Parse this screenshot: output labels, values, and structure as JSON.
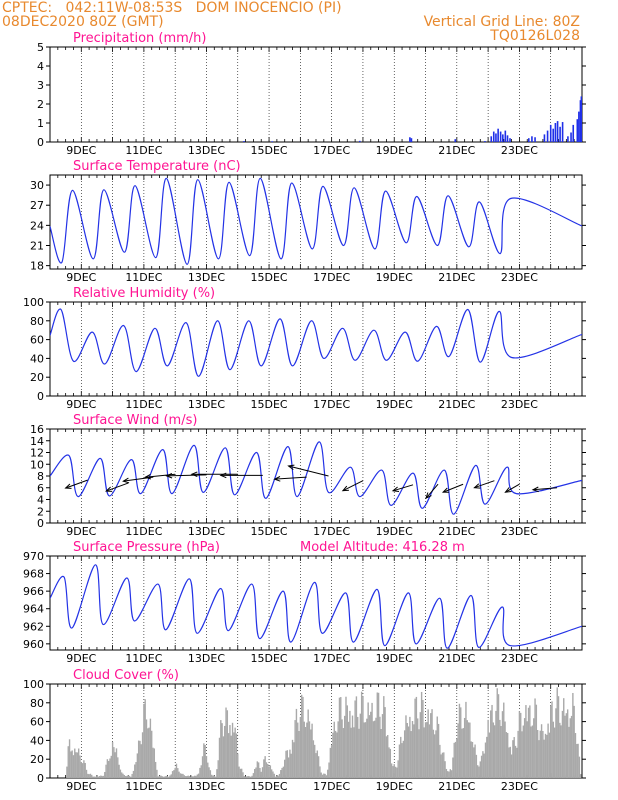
{
  "colors": {
    "header": "#e8892e",
    "title": "#ff1493",
    "line": "#2433e6",
    "bar_precip": "#1f2fe8",
    "bar_cloud": "#a9a9a9",
    "arrow": "#000000",
    "axis": "#000000"
  },
  "header": {
    "line1": "CPTEC:   042:11W-08:53S   DOM INOCENCIO (PI)",
    "line2_left": "08DEC2020 80Z (GMT)",
    "line2_right": "Vertical Grid Line: 80Z",
    "line3_right": "TQ0126L028"
  },
  "chart_data": [
    {
      "type": "bar",
      "title": "Precipitation (mm/h)",
      "x_ticks": [
        "9DEC",
        "11DEC",
        "13DEC",
        "15DEC",
        "17DEC",
        "19DEC",
        "21DEC",
        "23DEC"
      ],
      "ylim": [
        0,
        5
      ],
      "yticks": [
        0,
        1,
        2,
        3,
        4,
        5
      ],
      "values": [
        {
          "t": 14.2,
          "v": 0.05
        },
        {
          "t": 15.1,
          "v": 0.04
        },
        {
          "t": 17.9,
          "v": 0.06
        },
        {
          "t": 19.5,
          "v": 0.25
        },
        {
          "t": 19.55,
          "v": 0.2
        },
        {
          "t": 20.95,
          "v": 0.15
        },
        {
          "t": 21.9,
          "v": 0.05
        },
        {
          "t": 22.1,
          "v": 0.3
        },
        {
          "t": 22.18,
          "v": 0.55
        },
        {
          "t": 22.25,
          "v": 0.45
        },
        {
          "t": 22.32,
          "v": 0.7
        },
        {
          "t": 22.4,
          "v": 0.55
        },
        {
          "t": 22.47,
          "v": 0.4
        },
        {
          "t": 22.55,
          "v": 0.6
        },
        {
          "t": 22.62,
          "v": 0.35
        },
        {
          "t": 22.7,
          "v": 0.2
        },
        {
          "t": 23.3,
          "v": 0.2
        },
        {
          "t": 23.4,
          "v": 0.3
        },
        {
          "t": 23.5,
          "v": 0.25
        },
        {
          "t": 23.8,
          "v": 0.4
        },
        {
          "t": 23.9,
          "v": 0.6
        },
        {
          "t": 24.0,
          "v": 0.9
        },
        {
          "t": 24.08,
          "v": 0.7
        },
        {
          "t": 24.15,
          "v": 1.0
        },
        {
          "t": 24.22,
          "v": 1.1
        },
        {
          "t": 24.3,
          "v": 0.8
        },
        {
          "t": 24.38,
          "v": 1.05
        },
        {
          "t": 24.55,
          "v": 0.3
        },
        {
          "t": 24.65,
          "v": 0.5
        },
        {
          "t": 24.72,
          "v": 0.9
        },
        {
          "t": 24.85,
          "v": 1.2
        },
        {
          "t": 24.9,
          "v": 1.6
        },
        {
          "t": 24.95,
          "v": 2.2
        },
        {
          "t": 24.98,
          "v": 2.4
        }
      ]
    },
    {
      "type": "line",
      "title": "Surface Temperature (nC)",
      "x_ticks": [
        "9DEC",
        "11DEC",
        "13DEC",
        "15DEC",
        "17DEC",
        "19DEC",
        "21DEC",
        "23DEC"
      ],
      "ylim": [
        17.5,
        31.5
      ],
      "yticks": [
        18,
        21,
        24,
        27,
        30
      ],
      "max": [
        29.2,
        29.3,
        29.9,
        31.0,
        30.8,
        30.4,
        31.0,
        30.3,
        29.8,
        29.6,
        29.1,
        28.3,
        28.4,
        27.5,
        28.0
      ],
      "min": [
        18.5,
        19.0,
        20.0,
        19.2,
        18.2,
        19.0,
        19.5,
        19.0,
        20.5,
        21.0,
        20.5,
        21.4,
        21.0,
        20.8,
        19.8
      ]
    },
    {
      "type": "line",
      "title": "Relative Humidity (%)",
      "x_ticks": [
        "9DEC",
        "11DEC",
        "13DEC",
        "15DEC",
        "17DEC",
        "19DEC",
        "21DEC",
        "23DEC"
      ],
      "ylim": [
        0,
        100
      ],
      "yticks": [
        0,
        20,
        40,
        60,
        80,
        100
      ],
      "max": [
        92,
        68,
        75,
        72,
        78,
        80,
        80,
        82,
        80,
        72,
        70,
        68,
        74,
        92,
        90
      ],
      "min": [
        37,
        34,
        26,
        32,
        21,
        28,
        32,
        32,
        40,
        38,
        38,
        37,
        42,
        36,
        41
      ]
    },
    {
      "type": "line",
      "title": "Surface Wind (m/s)",
      "x_ticks": [
        "9DEC",
        "11DEC",
        "13DEC",
        "15DEC",
        "17DEC",
        "19DEC",
        "21DEC",
        "23DEC"
      ],
      "ylim": [
        0,
        16
      ],
      "yticks": [
        0,
        2,
        4,
        6,
        8,
        10,
        12,
        14,
        16
      ],
      "max": [
        11.5,
        11.0,
        10.8,
        12.5,
        13.2,
        12.8,
        12.0,
        13.0,
        13.8,
        9.5,
        9.0,
        8.5,
        9.0,
        9.8,
        9.5
      ],
      "min": [
        4.5,
        4.6,
        5.0,
        5.0,
        5.2,
        4.8,
        4.2,
        4.5,
        5.2,
        4.5,
        3.0,
        2.5,
        1.5,
        3.2,
        5.0
      ],
      "arrows": [
        {
          "t": 9.2,
          "v": 7.3,
          "dx": -22,
          "dy": 8
        },
        {
          "t": 10.5,
          "v": 6.8,
          "dx": -22,
          "dy": 8
        },
        {
          "t": 11.3,
          "v": 7.8,
          "dx": -30,
          "dy": 4
        },
        {
          "t": 12.0,
          "v": 8.3,
          "dx": -30,
          "dy": 3
        },
        {
          "t": 13.0,
          "v": 8.2,
          "dx": -40,
          "dy": 1
        },
        {
          "t": 14.0,
          "v": 8.3,
          "dx": -46,
          "dy": 0
        },
        {
          "t": 14.8,
          "v": 8.1,
          "dx": -42,
          "dy": 0
        },
        {
          "t": 16.2,
          "v": 7.8,
          "dx": -32,
          "dy": 2
        },
        {
          "t": 16.9,
          "v": 8.0,
          "dx": -40,
          "dy": -10
        },
        {
          "t": 18.0,
          "v": 7.2,
          "dx": -20,
          "dy": 10
        },
        {
          "t": 19.6,
          "v": 6.5,
          "dx": -20,
          "dy": 6
        },
        {
          "t": 20.4,
          "v": 6.6,
          "dx": -12,
          "dy": 14
        },
        {
          "t": 21.2,
          "v": 6.6,
          "dx": -20,
          "dy": 8
        },
        {
          "t": 22.2,
          "v": 7.2,
          "dx": -20,
          "dy": 7
        },
        {
          "t": 23.0,
          "v": 6.6,
          "dx": -14,
          "dy": 8
        },
        {
          "t": 24.2,
          "v": 6.0,
          "dx": -24,
          "dy": 2
        }
      ]
    },
    {
      "type": "line",
      "title": "Surface Pressure (hPa)",
      "subtitle": "Model Altitude: 416.28 m",
      "x_ticks": [
        "9DEC",
        "11DEC",
        "13DEC",
        "15DEC",
        "17DEC",
        "19DEC",
        "21DEC",
        "23DEC"
      ],
      "ylim": [
        959.3,
        970
      ],
      "yticks": [
        960,
        962,
        964,
        966,
        968,
        970
      ],
      "max": [
        967.6,
        969.0,
        967.5,
        966.8,
        967.4,
        966.3,
        966.8,
        966.0,
        967.0,
        965.8,
        966.2,
        965.8,
        965.2,
        965.5,
        964.2
      ],
      "min": [
        961.8,
        962.2,
        962.6,
        961.6,
        961.2,
        961.5,
        960.6,
        960.2,
        961.2,
        960.2,
        959.8,
        960.0,
        959.5,
        959.6,
        959.8
      ]
    },
    {
      "type": "bar",
      "title": "Cloud Cover (%)",
      "x_ticks": [
        "9DEC",
        "11DEC",
        "13DEC",
        "15DEC",
        "17DEC",
        "19DEC",
        "21DEC",
        "23DEC"
      ],
      "ylim": [
        0,
        100
      ],
      "yticks": [
        0,
        20,
        40,
        60,
        80,
        100
      ],
      "envelope": [
        {
          "t": 8.5,
          "v": 0
        },
        {
          "t": 8.6,
          "v": 45
        },
        {
          "t": 8.8,
          "v": 42
        },
        {
          "t": 9.0,
          "v": 30
        },
        {
          "t": 9.2,
          "v": 8
        },
        {
          "t": 9.4,
          "v": 2
        },
        {
          "t": 9.7,
          "v": 3
        },
        {
          "t": 9.9,
          "v": 30
        },
        {
          "t": 10.0,
          "v": 48
        },
        {
          "t": 10.15,
          "v": 35
        },
        {
          "t": 10.3,
          "v": 5
        },
        {
          "t": 10.6,
          "v": 2
        },
        {
          "t": 10.8,
          "v": 35
        },
        {
          "t": 11.0,
          "v": 85
        },
        {
          "t": 11.15,
          "v": 90
        },
        {
          "t": 11.3,
          "v": 50
        },
        {
          "t": 11.45,
          "v": 3
        },
        {
          "t": 11.8,
          "v": 2
        },
        {
          "t": 12.05,
          "v": 18
        },
        {
          "t": 12.2,
          "v": 5
        },
        {
          "t": 12.5,
          "v": 2
        },
        {
          "t": 12.75,
          "v": 5
        },
        {
          "t": 12.9,
          "v": 40
        },
        {
          "t": 13.0,
          "v": 35
        },
        {
          "t": 13.15,
          "v": 5
        },
        {
          "t": 13.3,
          "v": 2
        },
        {
          "t": 13.5,
          "v": 80
        },
        {
          "t": 13.75,
          "v": 82
        },
        {
          "t": 13.9,
          "v": 75
        },
        {
          "t": 14.05,
          "v": 18
        },
        {
          "t": 14.2,
          "v": 3
        },
        {
          "t": 14.45,
          "v": 2
        },
        {
          "t": 14.6,
          "v": 22
        },
        {
          "t": 14.75,
          "v": 12
        },
        {
          "t": 14.9,
          "v": 28
        },
        {
          "t": 15.1,
          "v": 12
        },
        {
          "t": 15.2,
          "v": 2
        },
        {
          "t": 15.35,
          "v": 5
        },
        {
          "t": 15.5,
          "v": 28
        },
        {
          "t": 15.7,
          "v": 45
        },
        {
          "t": 15.85,
          "v": 78
        },
        {
          "t": 16.0,
          "v": 93
        },
        {
          "t": 16.2,
          "v": 90
        },
        {
          "t": 16.4,
          "v": 70
        },
        {
          "t": 16.55,
          "v": 30
        },
        {
          "t": 16.7,
          "v": 5
        },
        {
          "t": 16.85,
          "v": 5
        },
        {
          "t": 17.0,
          "v": 55
        },
        {
          "t": 17.2,
          "v": 88
        },
        {
          "t": 17.5,
          "v": 97
        },
        {
          "t": 17.8,
          "v": 94
        },
        {
          "t": 18.1,
          "v": 96
        },
        {
          "t": 18.4,
          "v": 98
        },
        {
          "t": 18.7,
          "v": 92
        },
        {
          "t": 18.85,
          "v": 50
        },
        {
          "t": 18.95,
          "v": 15
        },
        {
          "t": 19.1,
          "v": 20
        },
        {
          "t": 19.3,
          "v": 70
        },
        {
          "t": 19.6,
          "v": 92
        },
        {
          "t": 19.9,
          "v": 95
        },
        {
          "t": 20.2,
          "v": 88
        },
        {
          "t": 20.4,
          "v": 65
        },
        {
          "t": 20.55,
          "v": 35
        },
        {
          "t": 20.7,
          "v": 10
        },
        {
          "t": 20.85,
          "v": 15
        },
        {
          "t": 21.0,
          "v": 75
        },
        {
          "t": 21.15,
          "v": 85
        },
        {
          "t": 21.3,
          "v": 95
        },
        {
          "t": 21.5,
          "v": 60
        },
        {
          "t": 21.65,
          "v": 20
        },
        {
          "t": 21.8,
          "v": 25
        },
        {
          "t": 22.0,
          "v": 80
        },
        {
          "t": 22.2,
          "v": 97
        },
        {
          "t": 22.45,
          "v": 98
        },
        {
          "t": 22.6,
          "v": 70
        },
        {
          "t": 22.75,
          "v": 40
        },
        {
          "t": 22.9,
          "v": 55
        },
        {
          "t": 23.1,
          "v": 90
        },
        {
          "t": 23.3,
          "v": 97
        },
        {
          "t": 23.55,
          "v": 85
        },
        {
          "t": 23.7,
          "v": 60
        },
        {
          "t": 23.85,
          "v": 70
        },
        {
          "t": 24.05,
          "v": 95
        },
        {
          "t": 24.25,
          "v": 98
        },
        {
          "t": 24.5,
          "v": 96
        },
        {
          "t": 24.7,
          "v": 98
        },
        {
          "t": 24.85,
          "v": 60
        },
        {
          "t": 24.95,
          "v": 5
        }
      ]
    }
  ]
}
